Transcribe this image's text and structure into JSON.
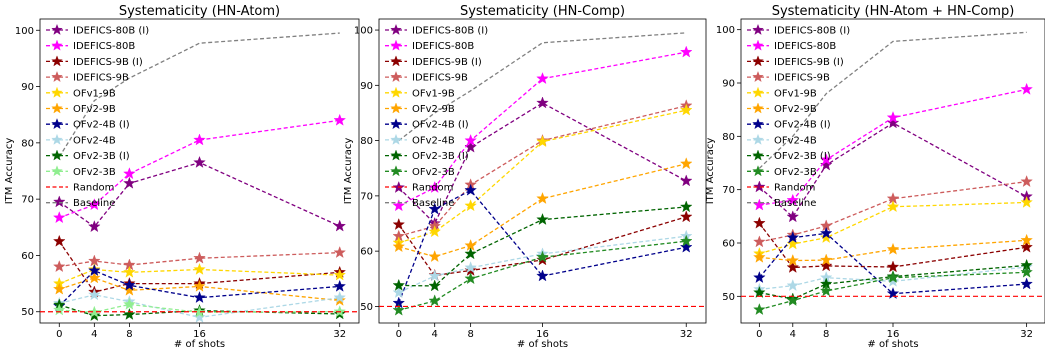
{
  "chart_data": [
    {
      "type": "line",
      "title": "Systematicity (HN-Atom)",
      "xlabel": "# of shots",
      "ylabel": "ITM Accuracy",
      "x": [
        0,
        4,
        8,
        16,
        32
      ],
      "xticks": [
        "0",
        "4",
        "8",
        "16",
        "32"
      ],
      "yticks": [
        "50",
        "60",
        "70",
        "80",
        "90",
        "100"
      ],
      "ylim": [
        48,
        102
      ],
      "grid": false,
      "legend": "top-left",
      "series": [
        {
          "name": "IDEFICS-80B (I)",
          "color": "#800080",
          "values": [
            69.5,
            65.1,
            72.8,
            76.5,
            65.2
          ]
        },
        {
          "name": "IDEFICS-80B",
          "color": "#ff00ff",
          "values": [
            66.7,
            69.0,
            74.5,
            80.5,
            84.0
          ]
        },
        {
          "name": "IDEFICS-9B (I)",
          "color": "#8b0000",
          "values": [
            62.5,
            53.5,
            55.0,
            55.0,
            57.0
          ]
        },
        {
          "name": "IDEFICS-9B",
          "color": "#cd5c5c",
          "values": [
            58.0,
            59.0,
            58.3,
            59.5,
            60.5
          ]
        },
        {
          "name": "OFv1-9B",
          "color": "#ffd700",
          "values": [
            55.0,
            57.5,
            57.0,
            57.5,
            56.5
          ]
        },
        {
          "name": "OFv2-9B",
          "color": "#ffa500",
          "values": [
            54.0,
            56.0,
            53.8,
            54.5,
            52.0
          ]
        },
        {
          "name": "OFv2-4B (I)",
          "color": "#00008b",
          "values": [
            51.0,
            57.3,
            54.7,
            52.5,
            54.5
          ]
        },
        {
          "name": "OFv2-4B",
          "color": "#add8e6",
          "values": [
            51.5,
            53.0,
            51.8,
            49.0,
            52.5
          ]
        },
        {
          "name": "OFv2-3B (I)",
          "color": "#006400",
          "values": [
            51.2,
            49.3,
            49.5,
            50.2,
            49.6
          ]
        },
        {
          "name": "OFv2-3B",
          "color": "#90ee90",
          "values": [
            50.3,
            49.9,
            51.3,
            49.9,
            50.0
          ]
        },
        {
          "name": "Random",
          "color": "#ff0000",
          "values": [
            50,
            50,
            50,
            50,
            50
          ]
        },
        {
          "name": "Baseline",
          "color": "#808080",
          "values": [
            77.5,
            87.5,
            91.5,
            97.7,
            99.5
          ]
        }
      ]
    },
    {
      "type": "line",
      "title": "Systematicity (HN-Comp)",
      "xlabel": "# of shots",
      "ylabel": "ITM Accuracy",
      "x": [
        0,
        4,
        8,
        16,
        32
      ],
      "xticks": [
        "0",
        "4",
        "8",
        "16",
        "32"
      ],
      "yticks": [
        "50",
        "60",
        "70",
        "80",
        "90",
        "100"
      ],
      "ylim": [
        47,
        102
      ],
      "grid": false,
      "legend": "top-left",
      "series": [
        {
          "name": "IDEFICS-80B (I)",
          "color": "#800080",
          "values": [
            71.5,
            65.0,
            78.8,
            86.8,
            72.7
          ]
        },
        {
          "name": "IDEFICS-80B",
          "color": "#ff00ff",
          "values": [
            68.2,
            71.5,
            80.0,
            91.2,
            96.0
          ]
        },
        {
          "name": "IDEFICS-9B (I)",
          "color": "#8b0000",
          "values": [
            64.8,
            55.6,
            56.5,
            58.4,
            66.2
          ]
        },
        {
          "name": "IDEFICS-9B",
          "color": "#cd5c5c",
          "values": [
            62.7,
            64.5,
            72.0,
            80.0,
            86.3
          ]
        },
        {
          "name": "OFv1-9B",
          "color": "#ffd700",
          "values": [
            61.5,
            63.5,
            68.2,
            79.8,
            85.5
          ]
        },
        {
          "name": "OFv2-9B",
          "color": "#ffa500",
          "values": [
            60.8,
            59.0,
            61.0,
            69.5,
            75.8
          ]
        },
        {
          "name": "OFv2-4B (I)",
          "color": "#00008b",
          "values": [
            50.6,
            67.6,
            71.0,
            55.5,
            60.7
          ]
        },
        {
          "name": "OFv2-4B",
          "color": "#add8e6",
          "values": [
            52.5,
            55.5,
            57.0,
            59.5,
            62.7
          ]
        },
        {
          "name": "OFv2-3B (I)",
          "color": "#006400",
          "values": [
            53.8,
            53.7,
            59.5,
            65.7,
            68.0
          ]
        },
        {
          "name": "OFv2-3B",
          "color": "#228b22",
          "values": [
            49.3,
            51.0,
            55.0,
            58.9,
            61.8
          ]
        },
        {
          "name": "Random",
          "color": "#ff0000",
          "values": [
            50,
            50,
            50,
            50,
            50
          ]
        },
        {
          "name": "Baseline",
          "color": "#808080",
          "values": [
            80.0,
            85.0,
            89.0,
            97.7,
            99.5
          ]
        }
      ]
    },
    {
      "type": "line",
      "title": "Systematicity (HN-Atom + HN-Comp)",
      "xlabel": "# of shots",
      "ylabel": "ITM Accuracy",
      "x": [
        0,
        4,
        8,
        16,
        32
      ],
      "xticks": [
        "0",
        "4",
        "8",
        "16",
        "32"
      ],
      "yticks": [
        "50",
        "60",
        "70",
        "80",
        "90",
        "100"
      ],
      "ylim": [
        45,
        102
      ],
      "grid": false,
      "legend": "top-left",
      "series": [
        {
          "name": "IDEFICS-80B (I)",
          "color": "#800080",
          "values": [
            70.5,
            64.9,
            74.6,
            82.5,
            68.7
          ]
        },
        {
          "name": "IDEFICS-80B",
          "color": "#ff00ff",
          "values": [
            67.1,
            68.0,
            75.6,
            83.5,
            88.8
          ]
        },
        {
          "name": "IDEFICS-9B (I)",
          "color": "#8b0000",
          "values": [
            63.7,
            55.4,
            55.7,
            55.5,
            59.2
          ]
        },
        {
          "name": "IDEFICS-9B",
          "color": "#cd5c5c",
          "values": [
            60.2,
            61.5,
            63.2,
            68.3,
            71.5
          ]
        },
        {
          "name": "OFv1-9B",
          "color": "#ffd700",
          "values": [
            58.0,
            59.8,
            61.0,
            66.8,
            67.6
          ]
        },
        {
          "name": "OFv2-9B",
          "color": "#ffa500",
          "values": [
            57.3,
            56.7,
            56.8,
            58.8,
            60.5
          ]
        },
        {
          "name": "OFv2-4B (I)",
          "color": "#00008b",
          "values": [
            53.5,
            61.0,
            61.8,
            50.5,
            52.3
          ]
        },
        {
          "name": "OFv2-4B",
          "color": "#add8e6",
          "values": [
            51.3,
            52.0,
            53.5,
            52.8,
            55.5
          ]
        },
        {
          "name": "OFv2-3B (I)",
          "color": "#006400",
          "values": [
            50.7,
            49.5,
            52.3,
            53.7,
            55.8
          ]
        },
        {
          "name": "OFv2-3B",
          "color": "#228b22",
          "values": [
            47.5,
            49.2,
            51.0,
            53.5,
            54.5
          ]
        },
        {
          "name": "Random",
          "color": "#ff0000",
          "values": [
            50,
            50,
            50,
            50,
            50
          ]
        },
        {
          "name": "Baseline",
          "color": "#808080",
          "values": [
            74.0,
            80.0,
            88.0,
            97.8,
            99.5
          ]
        }
      ]
    }
  ]
}
